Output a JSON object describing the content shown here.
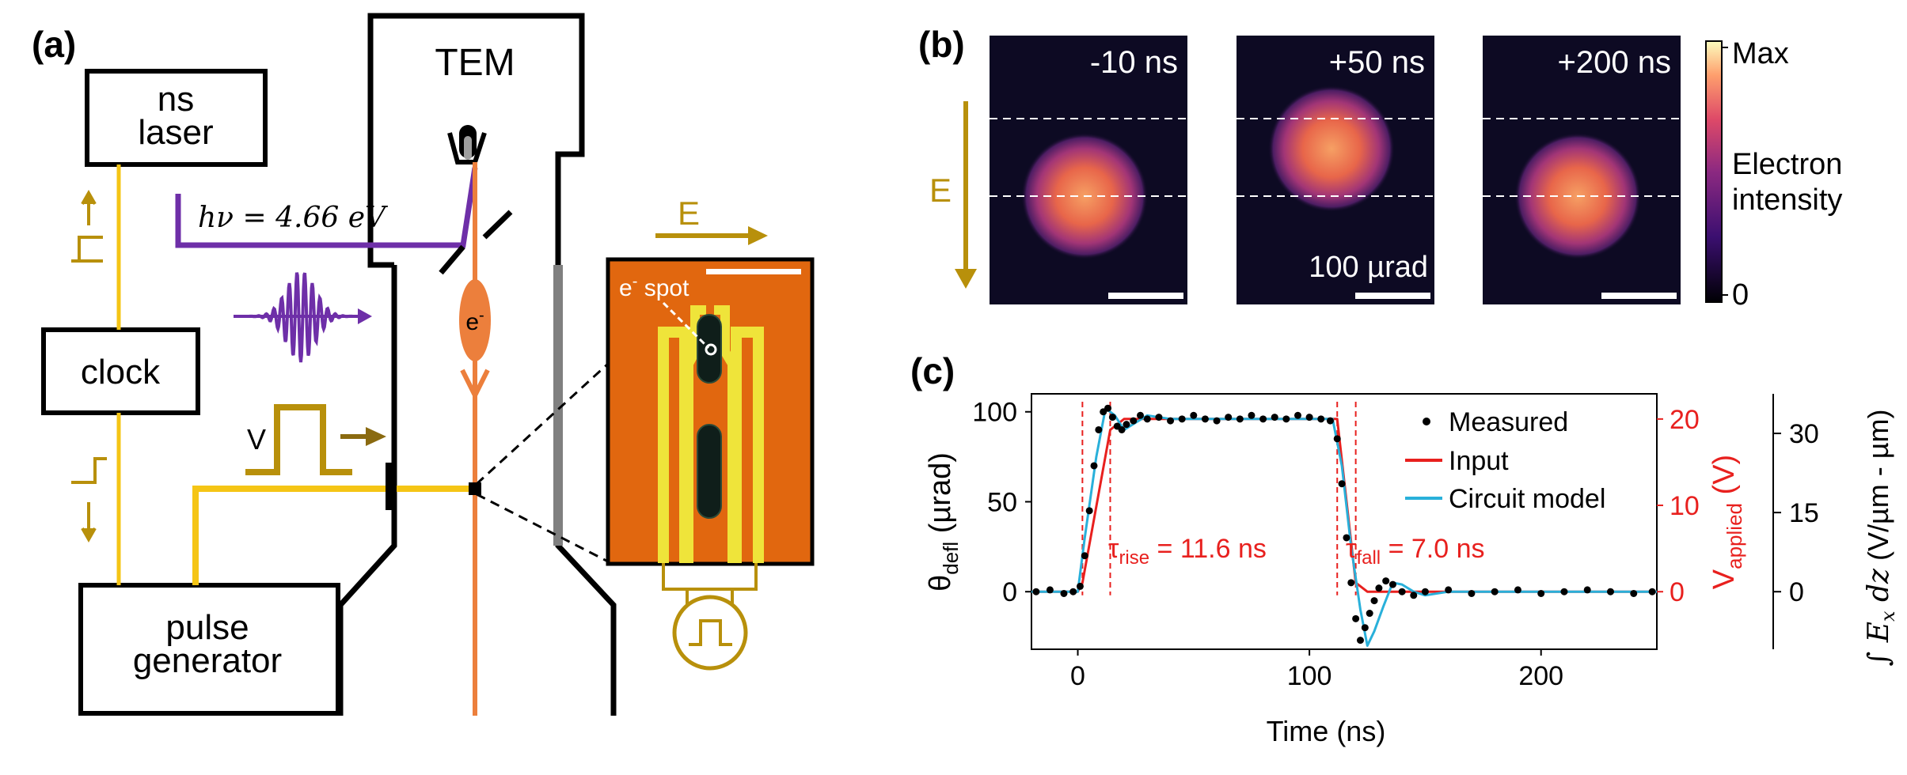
{
  "colors": {
    "gold": "#b8900b",
    "yellow": "#f5c515",
    "purple": "#6e2fa8",
    "orange": "#ec7f3c",
    "chip_bg": "#e1670f",
    "chip_gold": "#efe43a",
    "grey": "#808080",
    "red": "#e8201e",
    "cyan": "#29b0da"
  },
  "panel_a": {
    "label": "(a)",
    "tem": "TEM",
    "ns_laser_line1": "ns",
    "ns_laser_line2": "laser",
    "photon_energy": "hν = 4.66 eV",
    "clock": "clock",
    "pulse_gen_line1": "pulse",
    "pulse_gen_line2": "generator",
    "electron": "e",
    "electron_sup": "-",
    "voltage": "V",
    "field": "E",
    "e_spot": "e",
    "e_spot_sup": "-",
    "e_spot_rest": " spot"
  },
  "panel_b": {
    "label": "(b)",
    "field": "E",
    "frames": [
      {
        "time": "-10 ns",
        "spot_offset_urad": 0
      },
      {
        "time": "+50 ns",
        "spot_offset_urad": 100
      },
      {
        "time": "+200 ns",
        "spot_offset_urad": 0
      }
    ],
    "scale_bar": "100 µrad",
    "colorbar_max": "Max",
    "colorbar_min": "0",
    "colorbar_label_line1": "Electron",
    "colorbar_label_line2": "intensity"
  },
  "chart_data": {
    "type": "line",
    "label": "(c)",
    "xlabel": "Time (ns)",
    "ylabel_main": "θ",
    "ylabel_sub": "defl",
    "ylabel_unit": " (µrad)",
    "y2label_main": "V",
    "y2label_sub": "applied",
    "y2label_unit": " (V)",
    "y3label": "∫ E",
    "y3label_sub": "x",
    "y3label_dz": " dz",
    "y3label_unit": " (V/µm - µm)",
    "xlim": [
      -20,
      250
    ],
    "ylim": [
      -32,
      110
    ],
    "xticks": [
      0,
      100,
      200
    ],
    "yticks": [
      0,
      50,
      100
    ],
    "y2ticks": [
      0,
      10,
      20
    ],
    "y3ticks": [
      0,
      15,
      30
    ],
    "legend": [
      "Measured",
      "Input",
      "Circuit model"
    ],
    "annotations": {
      "rise_tau": "τ",
      "rise_sub": "rise",
      "rise_val": " = 11.6 ns",
      "fall_tau": "τ",
      "fall_sub": "fall",
      "fall_val": " = 7.0 ns",
      "rise_lines_ns": [
        2,
        14
      ],
      "fall_lines_ns": [
        112,
        120
      ]
    },
    "series": [
      {
        "name": "Input",
        "x": [
          -20,
          0,
          2,
          14,
          20,
          112,
          120,
          125,
          250
        ],
        "y": [
          0,
          0,
          5,
          90,
          96,
          96,
          5,
          0,
          0
        ]
      },
      {
        "name": "Circuit model",
        "x": [
          -20,
          0,
          3,
          8,
          12,
          16,
          20,
          25,
          30,
          40,
          60,
          100,
          110,
          114,
          118,
          122,
          125,
          128,
          132,
          136,
          140,
          145,
          150,
          160,
          250
        ],
        "y": [
          0,
          0,
          30,
          75,
          102,
          98,
          90,
          94,
          98,
          96,
          96,
          96,
          96,
          70,
          25,
          -10,
          -30,
          -22,
          -8,
          5,
          4,
          0,
          -2,
          0,
          0
        ]
      },
      {
        "name": "Measured",
        "x": [
          -18,
          -12,
          -6,
          -2,
          1,
          3,
          5,
          7,
          9,
          11,
          13,
          15,
          17,
          19,
          21,
          24,
          27,
          30,
          35,
          40,
          45,
          50,
          55,
          60,
          65,
          70,
          75,
          80,
          85,
          90,
          95,
          100,
          105,
          109,
          112,
          114,
          116,
          118,
          120,
          122,
          124,
          126,
          128,
          130,
          133,
          136,
          140,
          145,
          150,
          160,
          170,
          180,
          190,
          200,
          210,
          220,
          230,
          240,
          248
        ],
        "y": [
          0,
          1,
          -1,
          0,
          3,
          20,
          45,
          70,
          90,
          100,
          102,
          97,
          92,
          90,
          93,
          95,
          98,
          96,
          97,
          95,
          96,
          98,
          96,
          95,
          97,
          96,
          98,
          96,
          97,
          96,
          98,
          97,
          96,
          95,
          85,
          60,
          30,
          5,
          -15,
          -27,
          -20,
          -12,
          -5,
          2,
          6,
          4,
          0,
          -2,
          0,
          1,
          -1,
          0,
          1,
          -1,
          0,
          1,
          0,
          -1,
          0
        ]
      }
    ]
  }
}
